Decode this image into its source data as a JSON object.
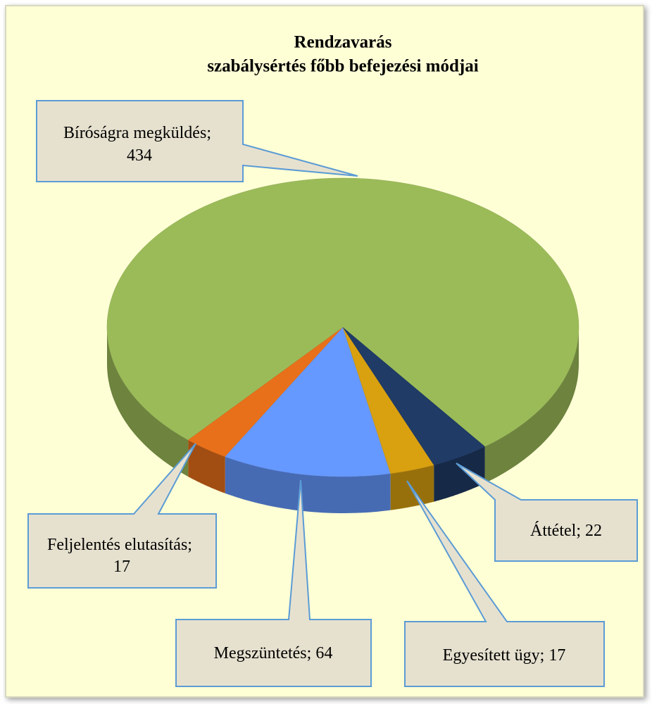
{
  "chart_data": {
    "type": "pie",
    "title": [
      "Rendzavarás",
      "szabálysértés főbb befejezési módjai"
    ],
    "categories": [
      "Bíróságra megküldés",
      "Feljelentés elutasítás",
      "Megszüntetés",
      "Egyesített ügy",
      "Áttétel"
    ],
    "values": [
      434,
      17,
      64,
      17,
      22
    ],
    "colors": [
      "#9bbb59",
      "#e8701a",
      "#6699ff",
      "#d9a010",
      "#1f3b66"
    ],
    "label_separator": "; "
  }
}
